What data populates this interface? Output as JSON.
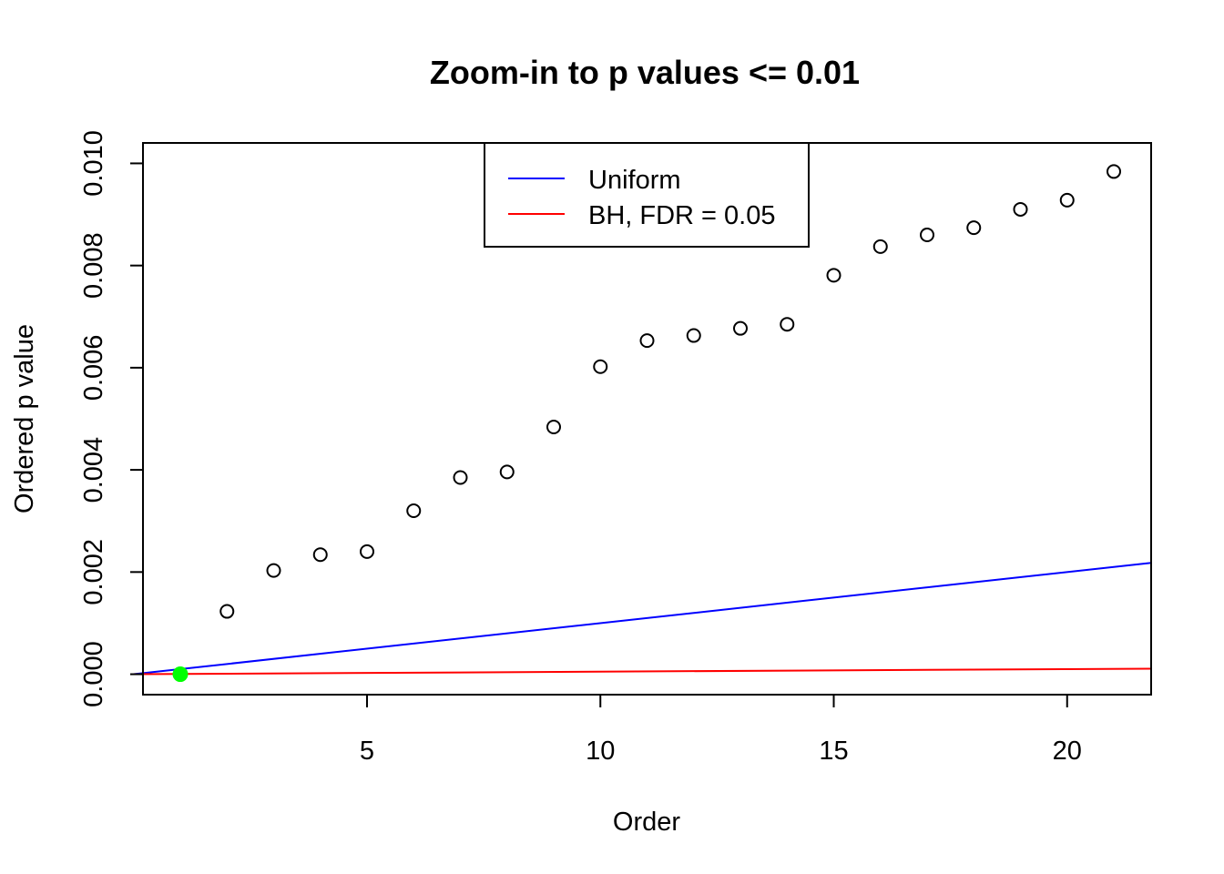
{
  "chart_data": {
    "type": "scatter",
    "title": "Zoom-in to p values <= 0.01",
    "xlabel": "Order",
    "ylabel": "Ordered p value",
    "xlim": [
      0.2,
      21.8
    ],
    "ylim": [
      -0.0004,
      0.0104
    ],
    "x_ticks": [
      5,
      10,
      15,
      20
    ],
    "x_tick_labels": [
      "5",
      "10",
      "15",
      "20"
    ],
    "y_ticks": [
      0,
      0.002,
      0.004,
      0.006,
      0.008,
      0.01
    ],
    "y_tick_labels": [
      "0.000",
      "0.002",
      "0.004",
      "0.006",
      "0.008",
      "0.010"
    ],
    "grid": false,
    "legend": {
      "position": "top-center",
      "entries": [
        {
          "label": "Uniform",
          "color": "#0000ff"
        },
        {
          "label": "BH, FDR = 0.05",
          "color": "#ff0000"
        }
      ]
    },
    "points": {
      "x": [
        1,
        2,
        3,
        4,
        5,
        6,
        7,
        8,
        9,
        10,
        11,
        12,
        13,
        14,
        15,
        16,
        17,
        18,
        19,
        20,
        21
      ],
      "y": [
        0.0,
        0.00123,
        0.00203,
        0.00234,
        0.0024,
        0.0032,
        0.00385,
        0.00396,
        0.00484,
        0.00602,
        0.00653,
        0.00663,
        0.00677,
        0.00685,
        0.00781,
        0.00837,
        0.0086,
        0.00874,
        0.0091,
        0.00928,
        0.00984
      ],
      "highlighted_index": 0,
      "highlight_color": "#00ff00"
    },
    "lines": [
      {
        "name": "Uniform",
        "color": "#0000ff",
        "slope": 0.0001,
        "intercept": 0
      },
      {
        "name": "BH, FDR = 0.05",
        "color": "#ff0000",
        "slope": 5e-06,
        "intercept": 0
      }
    ]
  }
}
